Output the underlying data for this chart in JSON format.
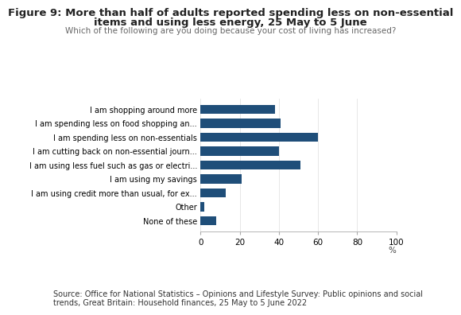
{
  "title_line1": "Figure 9: More than half of adults reported spending less on non-essential",
  "title_line2": "items and using less energy, 25 May to 5 June",
  "subtitle": "Which of the following are you doing because your cost of living has increased?",
  "categories": [
    "I am shopping around more",
    "I am spending less on food shopping an...",
    "I am spending less on non-essentials",
    "I am cutting back on non-essential journ...",
    "I am using less fuel such as gas or electri...",
    "I am using my savings",
    "I am using credit more than usual, for ex...",
    "Other",
    "None of these"
  ],
  "values": [
    38,
    41,
    60,
    40,
    51,
    21,
    13,
    2,
    8
  ],
  "bar_color": "#1f4e79",
  "xlim": [
    0,
    100
  ],
  "xticks": [
    0,
    20,
    40,
    60,
    80,
    100
  ],
  "xlabel": "%",
  "source_text": "Source: Office for National Statistics – Opinions and Lifestyle Survey: Public opinions and social\ntrends, Great Britain: Household finances, 25 May to 5 June 2022",
  "background_color": "#ffffff",
  "title_fontsize": 9.5,
  "subtitle_fontsize": 7.5,
  "label_fontsize": 7.0,
  "tick_fontsize": 7.5,
  "source_fontsize": 7.0
}
